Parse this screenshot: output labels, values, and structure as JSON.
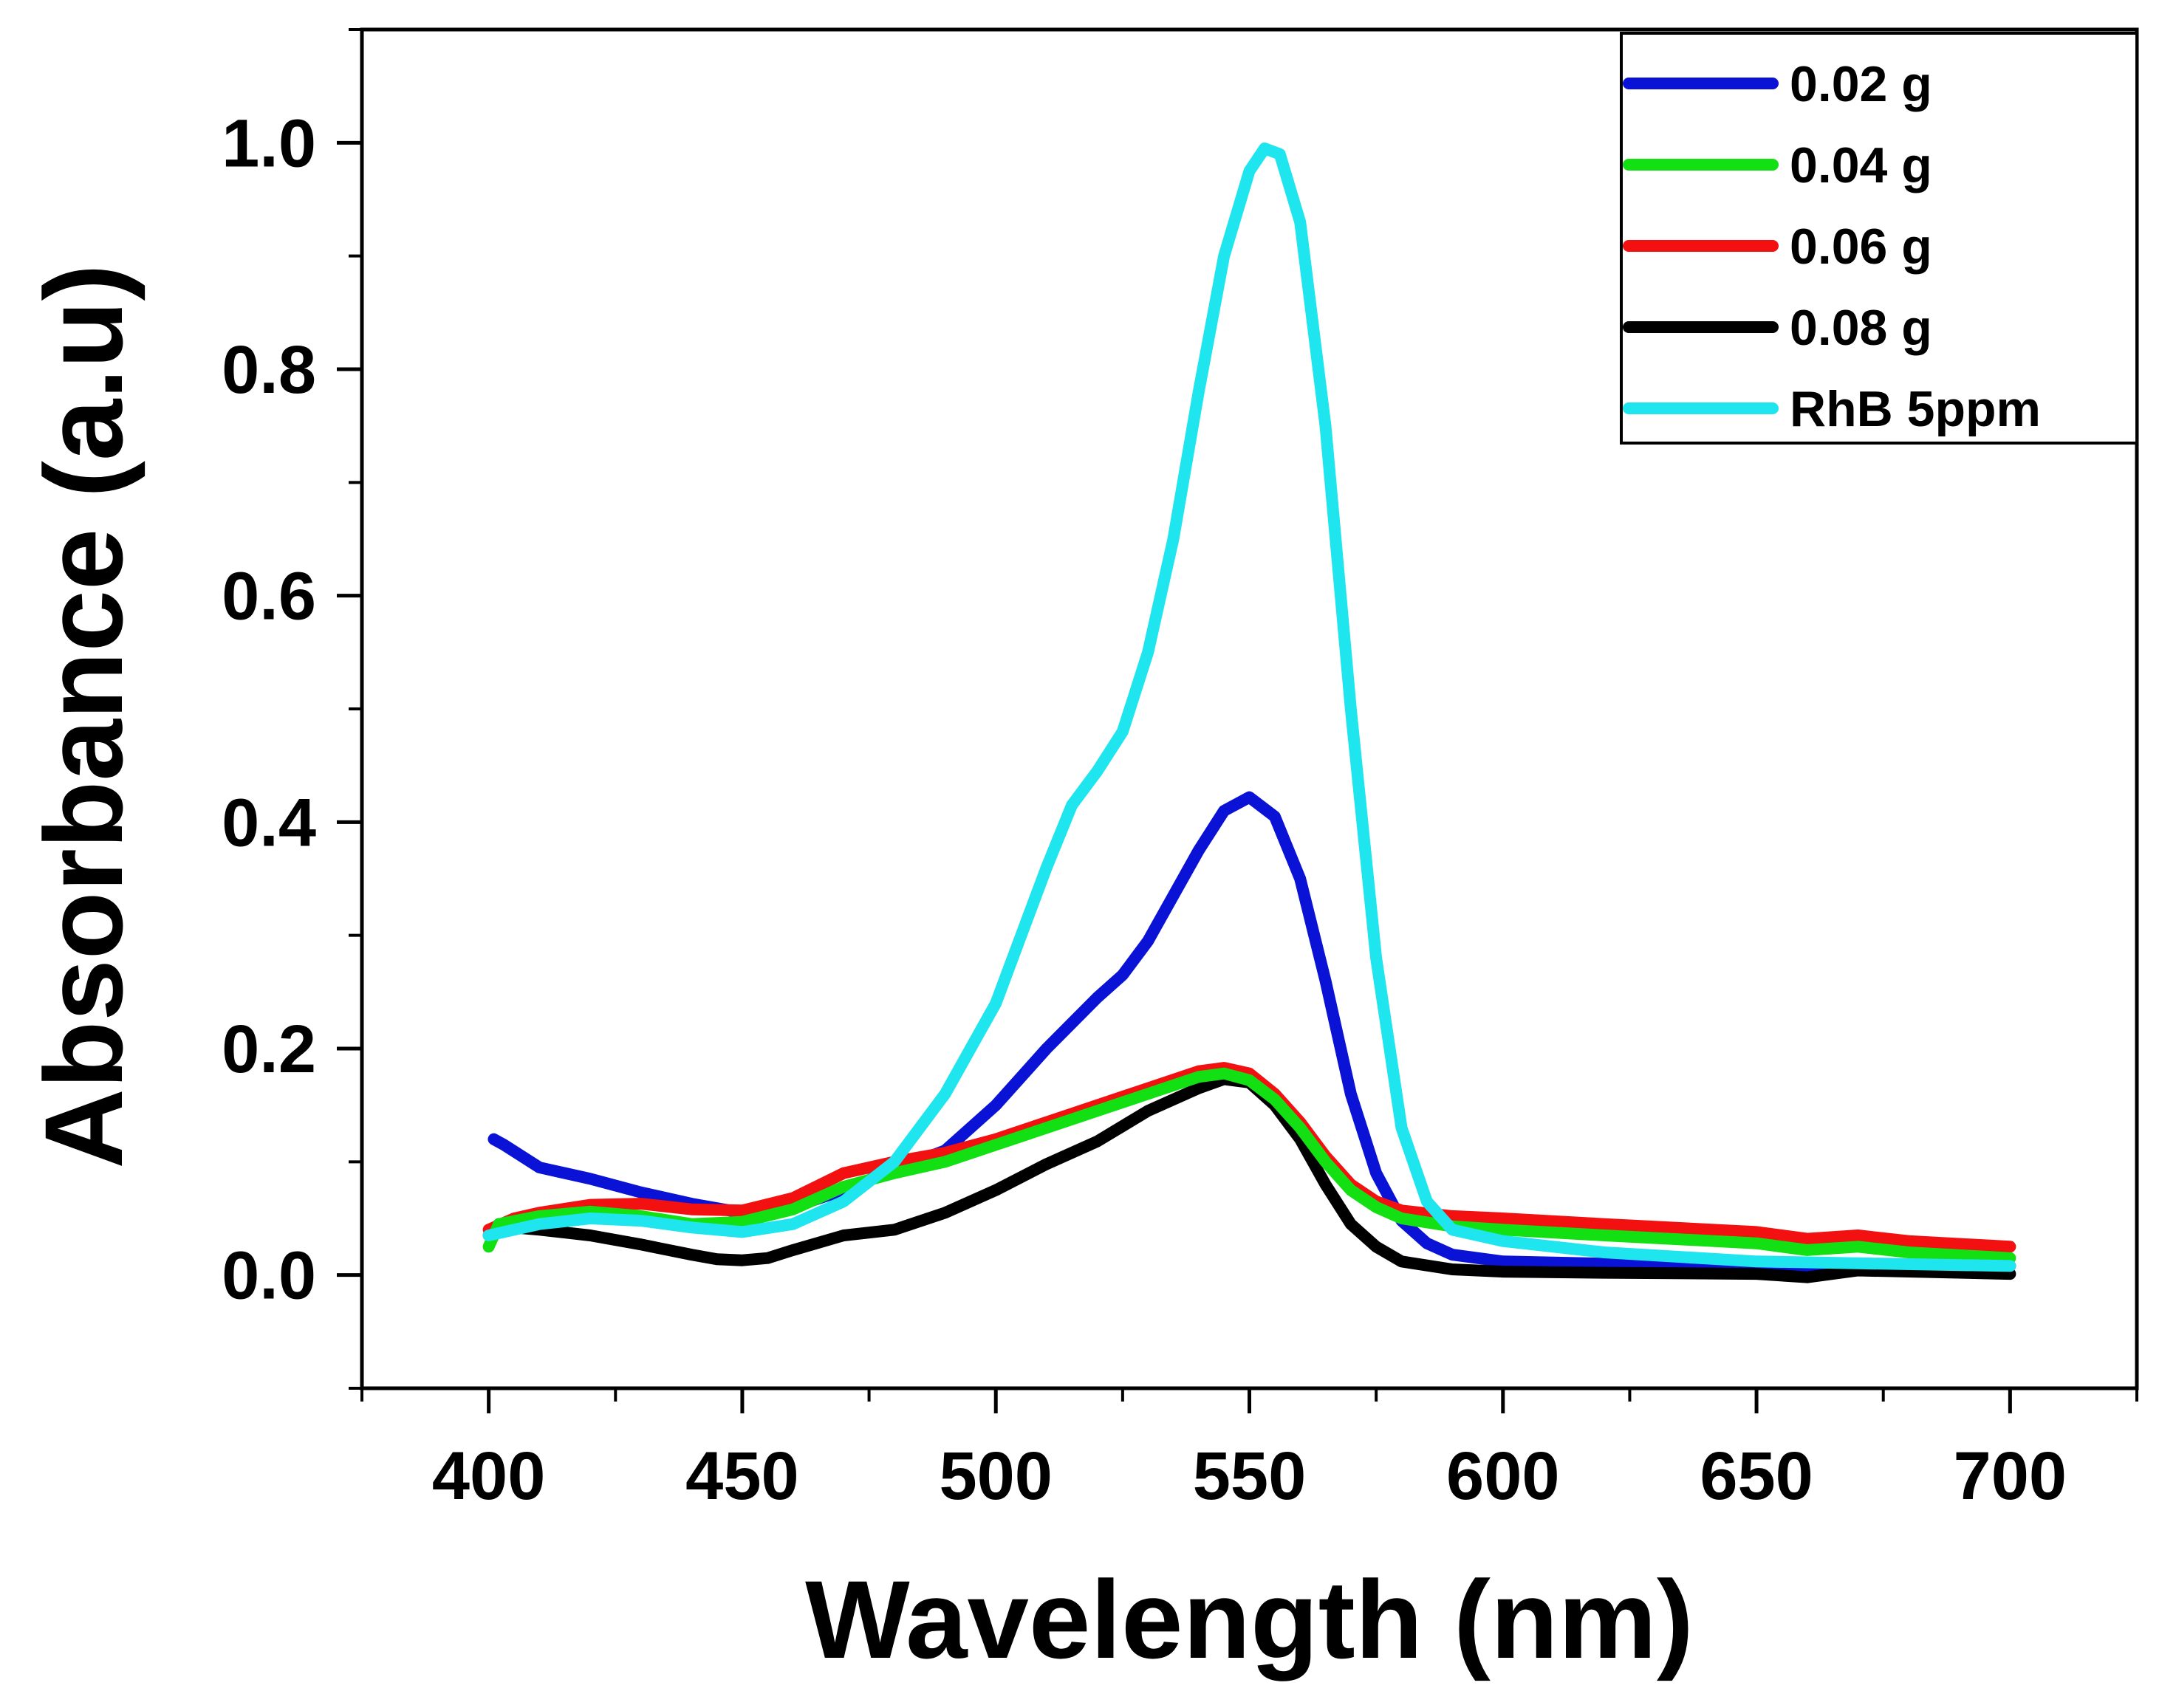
{
  "chart_data": {
    "type": "line",
    "title": "",
    "xlabel": "Wavelength (nm)",
    "ylabel": "Absorbance (a.u)",
    "xlim": [
      375,
      725
    ],
    "ylim": [
      -0.1,
      1.1
    ],
    "xticks": [
      400,
      450,
      500,
      550,
      600,
      650,
      700
    ],
    "xtick_labels": [
      "400",
      "450",
      "500",
      "550",
      "600",
      "650",
      "700"
    ],
    "yticks": [
      0.0,
      0.2,
      0.4,
      0.6,
      0.8,
      1.0
    ],
    "ytick_labels": [
      "0.0",
      "0.2",
      "0.4",
      "0.6",
      "0.8",
      "1.0"
    ],
    "grid": false,
    "legend_position": "top-right",
    "series": [
      {
        "name": "0.02 g",
        "color": "#0a12d6",
        "x": [
          401,
          403,
          410,
          420,
          430,
          440,
          450,
          460,
          470,
          480,
          490,
          500,
          510,
          520,
          525,
          530,
          535,
          540,
          545,
          550,
          555,
          560,
          565,
          570,
          575,
          580,
          585,
          590,
          600,
          620,
          650,
          670,
          700
        ],
        "y": [
          0.12,
          0.115,
          0.095,
          0.085,
          0.073,
          0.063,
          0.055,
          0.06,
          0.075,
          0.093,
          0.11,
          0.15,
          0.2,
          0.245,
          0.265,
          0.295,
          0.335,
          0.375,
          0.41,
          0.422,
          0.405,
          0.35,
          0.26,
          0.16,
          0.09,
          0.048,
          0.028,
          0.018,
          0.012,
          0.01,
          0.008,
          0.008,
          0.008
        ]
      },
      {
        "name": "0.04 g",
        "color": "#12e012",
        "x": [
          400,
          402,
          410,
          420,
          430,
          440,
          450,
          460,
          470,
          480,
          490,
          500,
          510,
          520,
          530,
          540,
          545,
          550,
          555,
          560,
          565,
          570,
          575,
          580,
          590,
          600,
          620,
          650,
          660,
          670,
          680,
          700
        ],
        "y": [
          0.025,
          0.045,
          0.052,
          0.056,
          0.052,
          0.045,
          0.047,
          0.058,
          0.078,
          0.09,
          0.1,
          0.115,
          0.13,
          0.145,
          0.16,
          0.175,
          0.178,
          0.172,
          0.155,
          0.13,
          0.1,
          0.075,
          0.06,
          0.05,
          0.043,
          0.04,
          0.035,
          0.028,
          0.022,
          0.025,
          0.02,
          0.015
        ]
      },
      {
        "name": "0.06 g",
        "color": "#f21010",
        "x": [
          400,
          405,
          410,
          420,
          430,
          440,
          450,
          460,
          470,
          480,
          490,
          500,
          510,
          520,
          530,
          540,
          545,
          550,
          555,
          560,
          565,
          570,
          575,
          580,
          590,
          600,
          620,
          650,
          660,
          670,
          680,
          700
        ],
        "y": [
          0.04,
          0.05,
          0.055,
          0.062,
          0.063,
          0.058,
          0.057,
          0.068,
          0.09,
          0.1,
          0.108,
          0.12,
          0.135,
          0.15,
          0.165,
          0.18,
          0.183,
          0.178,
          0.16,
          0.135,
          0.105,
          0.08,
          0.065,
          0.057,
          0.052,
          0.05,
          0.045,
          0.038,
          0.032,
          0.035,
          0.03,
          0.025
        ]
      },
      {
        "name": "0.08 g",
        "color": "#000000",
        "x": [
          400,
          402,
          405,
          410,
          420,
          430,
          440,
          445,
          450,
          455,
          460,
          470,
          480,
          490,
          500,
          510,
          520,
          530,
          540,
          545,
          550,
          555,
          560,
          565,
          570,
          575,
          580,
          590,
          600,
          620,
          650,
          660,
          670,
          700
        ],
        "y": [
          0.035,
          0.045,
          0.042,
          0.04,
          0.035,
          0.027,
          0.018,
          0.014,
          0.013,
          0.015,
          0.022,
          0.035,
          0.04,
          0.055,
          0.075,
          0.098,
          0.118,
          0.145,
          0.165,
          0.173,
          0.17,
          0.15,
          0.12,
          0.08,
          0.045,
          0.025,
          0.012,
          0.005,
          0.003,
          0.002,
          0.001,
          -0.002,
          0.004,
          0.001
        ]
      },
      {
        "name": "RhB 5ppm",
        "color": "#1fe5ef",
        "x": [
          400,
          405,
          410,
          420,
          430,
          440,
          450,
          460,
          470,
          480,
          490,
          500,
          505,
          510,
          515,
          520,
          525,
          530,
          535,
          540,
          545,
          550,
          553,
          556,
          560,
          565,
          570,
          575,
          580,
          585,
          590,
          600,
          620,
          650,
          700
        ],
        "y": [
          0.035,
          0.04,
          0.045,
          0.05,
          0.048,
          0.042,
          0.038,
          0.045,
          0.065,
          0.1,
          0.16,
          0.24,
          0.3,
          0.36,
          0.415,
          0.445,
          0.48,
          0.55,
          0.65,
          0.78,
          0.9,
          0.975,
          0.995,
          0.99,
          0.93,
          0.75,
          0.5,
          0.28,
          0.13,
          0.065,
          0.04,
          0.03,
          0.02,
          0.012,
          0.008
        ]
      }
    ]
  }
}
